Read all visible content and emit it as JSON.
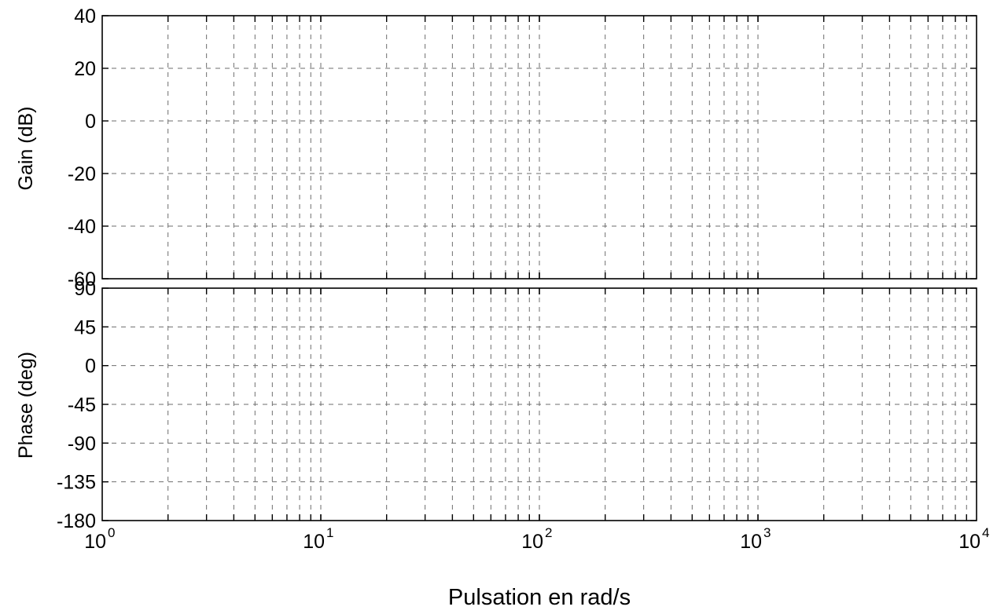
{
  "chart_data": [
    {
      "type": "line",
      "subplot": "gain",
      "ylabel": "Gain (dB)",
      "xscale": "log",
      "xlim": [
        1,
        10000
      ],
      "ylim": [
        -60,
        40
      ],
      "yticks": [
        40,
        20,
        0,
        -20,
        -40,
        -60
      ],
      "ytick_labels": [
        "40",
        "20",
        "0",
        "-20",
        "-40",
        "-60"
      ],
      "grid": true,
      "series": []
    },
    {
      "type": "line",
      "subplot": "phase",
      "ylabel": "Phase (deg)",
      "xlabel": "Pulsation en rad/s",
      "xscale": "log",
      "xlim": [
        1,
        10000
      ],
      "ylim": [
        -180,
        90
      ],
      "yticks": [
        90,
        45,
        0,
        -45,
        -90,
        -135,
        -180
      ],
      "ytick_labels": [
        "90",
        "45",
        "0",
        "-45",
        "-90",
        "-135",
        "-180"
      ],
      "xticks": [
        1,
        10,
        100,
        1000,
        10000
      ],
      "xtick_labels": [
        {
          "base": "10",
          "exp": "0"
        },
        {
          "base": "10",
          "exp": "1"
        },
        {
          "base": "10",
          "exp": "2"
        },
        {
          "base": "10",
          "exp": "3"
        },
        {
          "base": "10",
          "exp": "4"
        }
      ],
      "grid": true,
      "series": []
    }
  ]
}
